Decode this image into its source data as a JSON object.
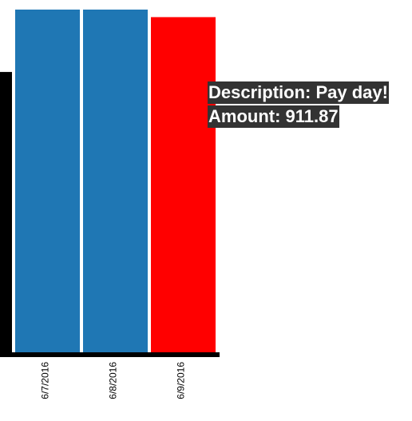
{
  "chart_data": {
    "type": "bar",
    "categories": [
      "6/7/2016",
      "6/8/2016",
      "6/9/2016"
    ],
    "values": [
      1000,
      1000,
      978
    ],
    "ylim": [
      0,
      1000
    ],
    "axis_y_top_value": 818,
    "bar_colors": [
      "#1f77b4",
      "#1f77b4",
      "#ff0000"
    ],
    "axis_color": "#000000",
    "grid": false,
    "legend": "none"
  },
  "tooltip": {
    "description_prefix": "Description: ",
    "description": "Pay day!",
    "amount_prefix": "Amount: ",
    "amount": "911.87"
  }
}
